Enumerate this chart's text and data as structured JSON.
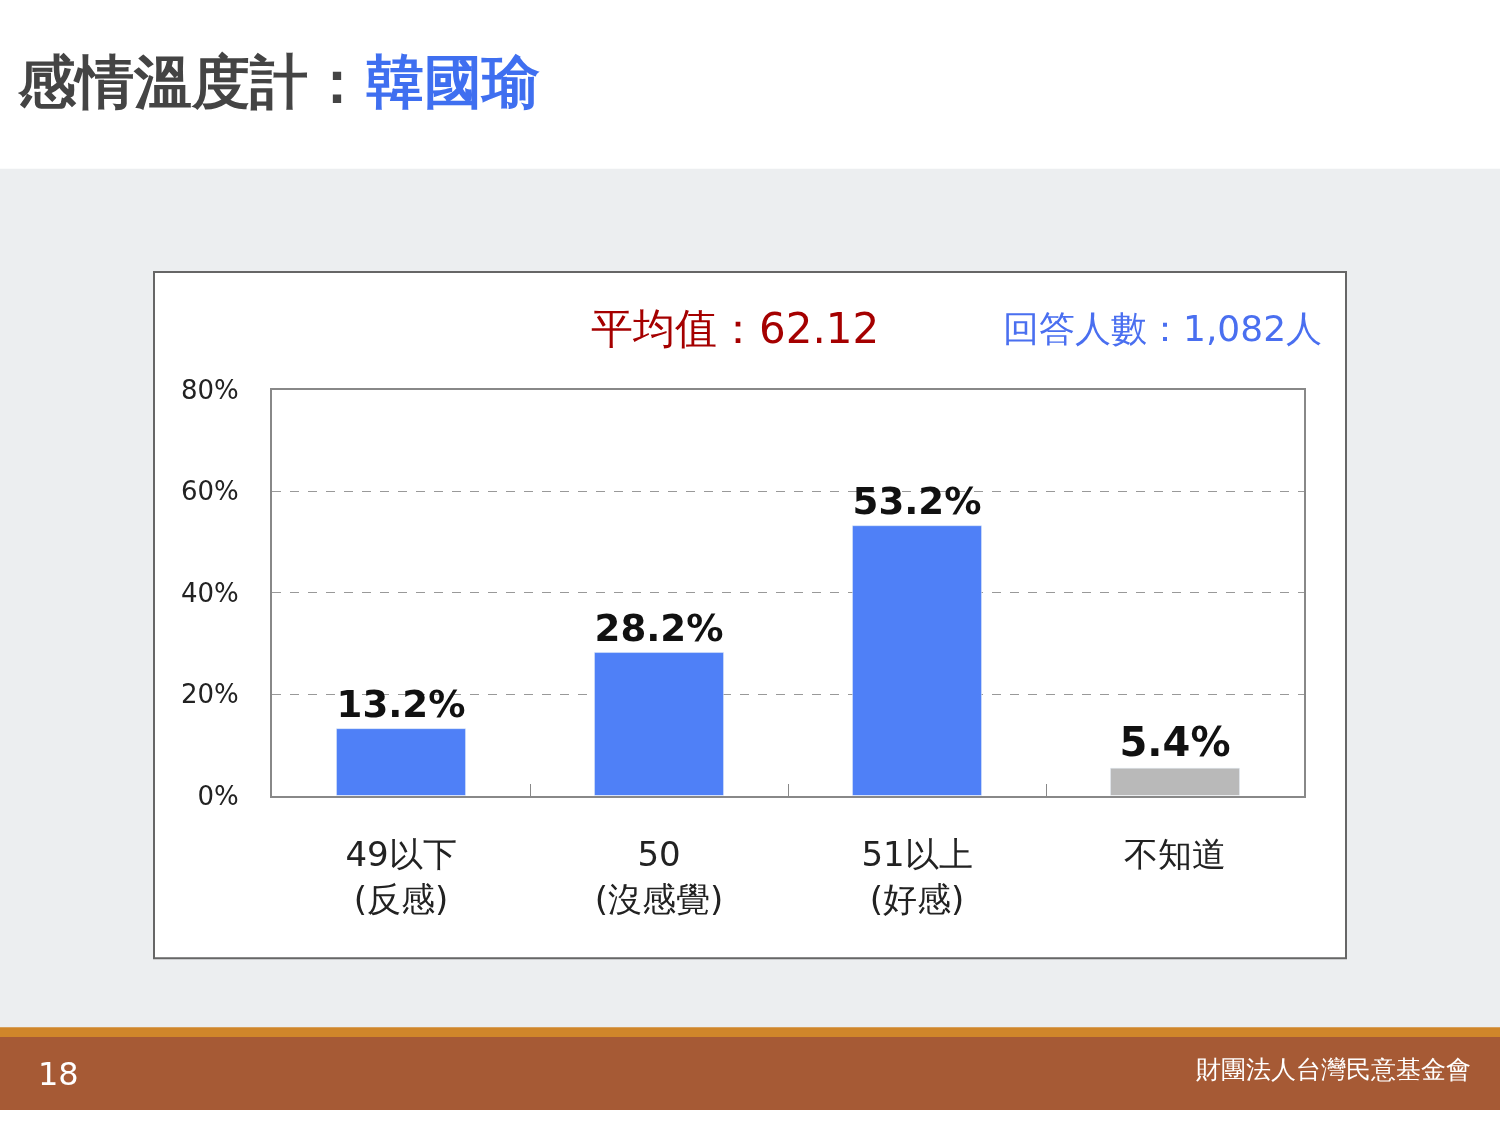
{
  "chart_data": {
    "type": "bar",
    "title": "感情溫度計：韓國瑜",
    "categories": [
      "49以下\n(反感)",
      "50\n(沒感覺)",
      "51以上\n(好感)",
      "不知道"
    ],
    "values": [
      13.2,
      28.2,
      53.2,
      5.4
    ],
    "colors": [
      "#4f80f7",
      "#4f80f7",
      "#4f80f7",
      "#b9b9b9"
    ],
    "value_labels": [
      "13.2%",
      "28.2%",
      "53.2%",
      "5.4%"
    ],
    "ylim": [
      0,
      80
    ],
    "yticks": [
      {
        "value": 0,
        "label": "0%"
      },
      {
        "value": 20,
        "label": "20%"
      },
      {
        "value": 40,
        "label": "40%"
      },
      {
        "value": 60,
        "label": "60%"
      },
      {
        "value": 80,
        "label": "80%"
      }
    ],
    "grid": "y",
    "annotations": [
      "平均值：62.12",
      "回答人數：1,082人",
      "18",
      "財團法人台灣民意基金會"
    ]
  }
}
